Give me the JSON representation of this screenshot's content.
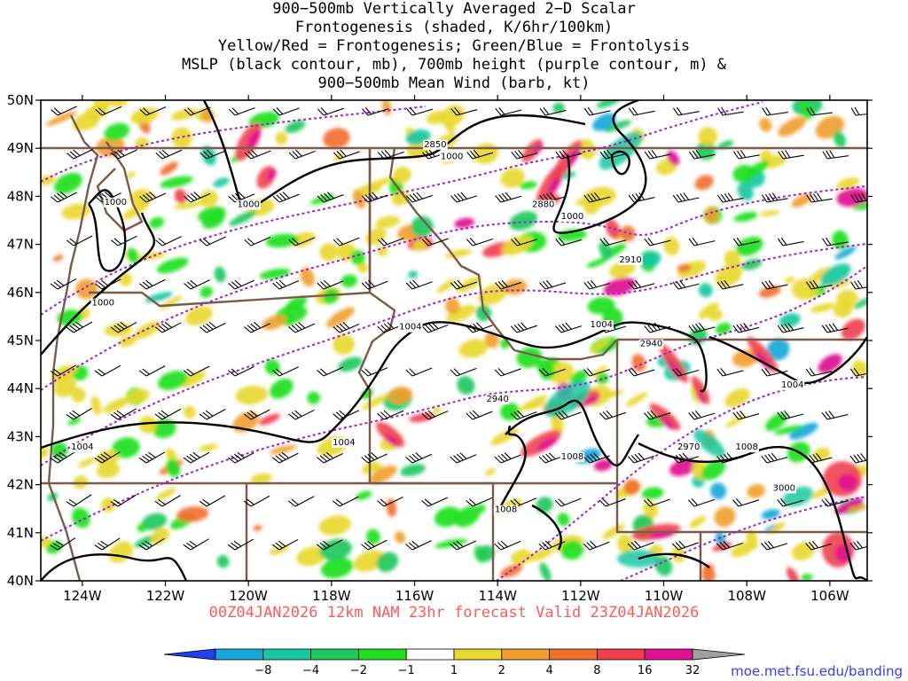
{
  "title_lines": [
    "900−500mb Vertically Averaged 2−D Scalar",
    "Frontogenesis (shaded, K/6hr/100km)",
    "Yellow/Red = Frontogenesis;  Green/Blue = Frontolysis",
    "MSLP (black contour, mb), 700mb height (purple contour, m) &",
    "900−500mb Mean Wind (barb, kt)"
  ],
  "valid_line": "00Z04JAN2026 12km NAM 23hr forecast Valid 23Z04JAN2026",
  "credit": "moe.met.fsu.edu/banding",
  "lat_labels": [
    "50N",
    "49N",
    "48N",
    "47N",
    "46N",
    "45N",
    "44N",
    "43N",
    "42N",
    "41N",
    "40N"
  ],
  "lat_values": [
    50,
    49,
    48,
    47,
    46,
    45,
    44,
    43,
    42,
    41,
    40
  ],
  "lon_labels": [
    "124W",
    "122W",
    "120W",
    "118W",
    "116W",
    "114W",
    "112W",
    "110W",
    "108W",
    "106W"
  ],
  "lon_values": [
    -124,
    -122,
    -120,
    -118,
    -116,
    -114,
    -112,
    -110,
    -108,
    -106
  ],
  "extent": {
    "lon_min": -125,
    "lon_max": -105.1,
    "lat_min": 40,
    "lat_max": 50
  },
  "colorbar": {
    "labels": [
      "−8",
      "−4",
      "−2",
      "−1",
      "1",
      "2",
      "4",
      "8",
      "16",
      "32"
    ],
    "colors": [
      "#2040f0",
      "#18a8d8",
      "#18c8a0",
      "#20c860",
      "#20e020",
      "#ffffff",
      "#e8d830",
      "#f0a030",
      "#f07030",
      "#f04050",
      "#e01090",
      "#000000",
      "#a0a0a0"
    ]
  },
  "mslp_labels": [
    {
      "text": "1000",
      "lon": -123.2,
      "lat": 47.9
    },
    {
      "text": "1000",
      "lon": -120.0,
      "lat": 47.85
    },
    {
      "text": "1000",
      "lon": -115.1,
      "lat": 48.85
    },
    {
      "text": "1000",
      "lon": -112.2,
      "lat": 47.6
    },
    {
      "text": "1000",
      "lon": -123.5,
      "lat": 45.8
    },
    {
      "text": "1004",
      "lon": -116.1,
      "lat": 45.3
    },
    {
      "text": "1004",
      "lon": -111.5,
      "lat": 45.35
    },
    {
      "text": "1004",
      "lon": -106.9,
      "lat": 44.1
    },
    {
      "text": "1004",
      "lon": -124.0,
      "lat": 42.8
    },
    {
      "text": "1004",
      "lon": -117.7,
      "lat": 42.9
    },
    {
      "text": "1008",
      "lon": -112.2,
      "lat": 42.6
    },
    {
      "text": "1008",
      "lon": -113.8,
      "lat": 41.5
    },
    {
      "text": "1008",
      "lon": -108.0,
      "lat": 42.8
    }
  ],
  "height_labels": [
    {
      "text": "2850",
      "lon": -115.5,
      "lat": 49.1
    },
    {
      "text": "2880",
      "lon": -112.9,
      "lat": 47.85
    },
    {
      "text": "2910",
      "lon": -110.8,
      "lat": 46.7
    },
    {
      "text": "2940",
      "lon": -114.0,
      "lat": 43.8
    },
    {
      "text": "2940",
      "lon": -110.3,
      "lat": 44.95
    },
    {
      "text": "2970",
      "lon": -109.4,
      "lat": 42.8
    },
    {
      "text": "3000",
      "lon": -107.1,
      "lat": 41.95
    }
  ]
}
